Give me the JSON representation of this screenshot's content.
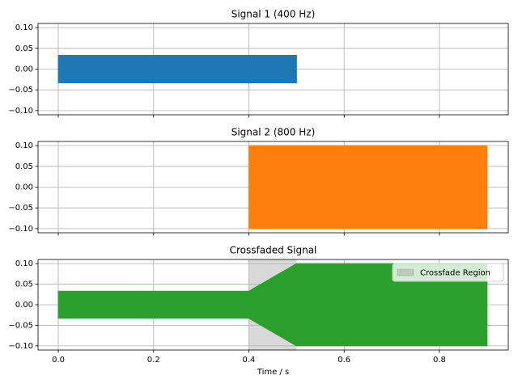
{
  "chart_data": [
    {
      "type": "area",
      "title": "Signal 1 (400 Hz)",
      "x": [
        0,
        0.5
      ],
      "upper": [
        0.033,
        0.033
      ],
      "lower": [
        -0.033,
        -0.033
      ],
      "color": "#1f77b4",
      "xlim": [
        -0.0425,
        0.9445
      ],
      "xticks": [
        0,
        0.2,
        0.4,
        0.6,
        0.8
      ],
      "ylim": [
        -0.11,
        0.11
      ],
      "yticks": [
        {
          "value": -0.1,
          "label": "−0.10"
        },
        {
          "value": -0.05,
          "label": "−0.05"
        },
        {
          "value": 0,
          "label": "0.00"
        },
        {
          "value": 0.05,
          "label": "0.05"
        },
        {
          "value": 0.1,
          "label": "0.10"
        }
      ],
      "grid": true
    },
    {
      "type": "area",
      "title": "Signal 2 (800 Hz)",
      "x": [
        0.4,
        0.9
      ],
      "upper": [
        0.1,
        0.1
      ],
      "lower": [
        -0.1,
        -0.1
      ],
      "color": "#ff7f0e",
      "xlim": [
        -0.0425,
        0.9445
      ],
      "xticks": [
        0,
        0.2,
        0.4,
        0.6,
        0.8
      ],
      "ylim": [
        -0.11,
        0.11
      ],
      "yticks": [
        {
          "value": -0.1,
          "label": "−0.10"
        },
        {
          "value": -0.05,
          "label": "−0.05"
        },
        {
          "value": 0,
          "label": "0.00"
        },
        {
          "value": 0.05,
          "label": "0.05"
        },
        {
          "value": 0.1,
          "label": "0.10"
        }
      ],
      "grid": true
    },
    {
      "type": "area",
      "title": "Crossfaded Signal",
      "x_label": "Time / s",
      "x": [
        0,
        0.4,
        0.5,
        0.9
      ],
      "upper": [
        0.033,
        0.033,
        0.1,
        0.1
      ],
      "lower": [
        -0.033,
        -0.033,
        -0.1,
        -0.1
      ],
      "color": "#2ca02c",
      "span": {
        "label": "Crossfade Region",
        "xmin": 0.4,
        "xmax": 0.5,
        "color": "#808080"
      },
      "legend": "upper right",
      "xlim": [
        -0.0425,
        0.9445
      ],
      "xticks": [
        {
          "value": 0,
          "label": "0.0"
        },
        {
          "value": 0.2,
          "label": "0.2"
        },
        {
          "value": 0.4,
          "label": "0.4"
        },
        {
          "value": 0.6,
          "label": "0.6"
        },
        {
          "value": 0.8,
          "label": "0.8"
        }
      ],
      "ylim": [
        -0.11,
        0.11
      ],
      "yticks": [
        {
          "value": -0.1,
          "label": "−0.10"
        },
        {
          "value": -0.05,
          "label": "−0.05"
        },
        {
          "value": 0,
          "label": "0.00"
        },
        {
          "value": 0.05,
          "label": "0.05"
        },
        {
          "value": 0.1,
          "label": "0.10"
        }
      ],
      "grid": true
    }
  ]
}
